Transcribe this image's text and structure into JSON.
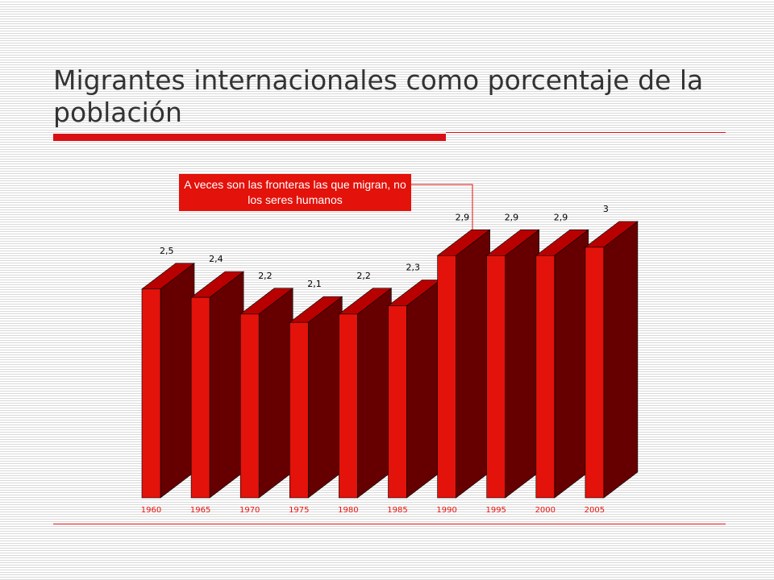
{
  "slide": {
    "title": "Migrantes internacionales como porcentaje de la población",
    "callout": "A veces son las fronteras las que migran, no los seres humanos"
  },
  "colors": {
    "accent": "#d90f14",
    "bar_front": "#e3120b",
    "bar_side": "#660000",
    "bar_top": "#b80000",
    "year_label": "#e3120b"
  },
  "chart_data": {
    "type": "bar",
    "style": "3d",
    "categories": [
      "1960",
      "1965",
      "1970",
      "1975",
      "1980",
      "1985",
      "1990",
      "1995",
      "2000",
      "2005"
    ],
    "values": [
      2.5,
      2.4,
      2.2,
      2.1,
      2.2,
      2.3,
      2.9,
      2.9,
      2.9,
      3
    ],
    "data_labels": [
      "2,5",
      "2,4",
      "2,2",
      "2,1",
      "2,2",
      "2,3",
      "2,9",
      "2,9",
      "2,9",
      "3"
    ],
    "title": "",
    "xlabel": "",
    "ylabel": "",
    "grid": false,
    "legend": false
  }
}
